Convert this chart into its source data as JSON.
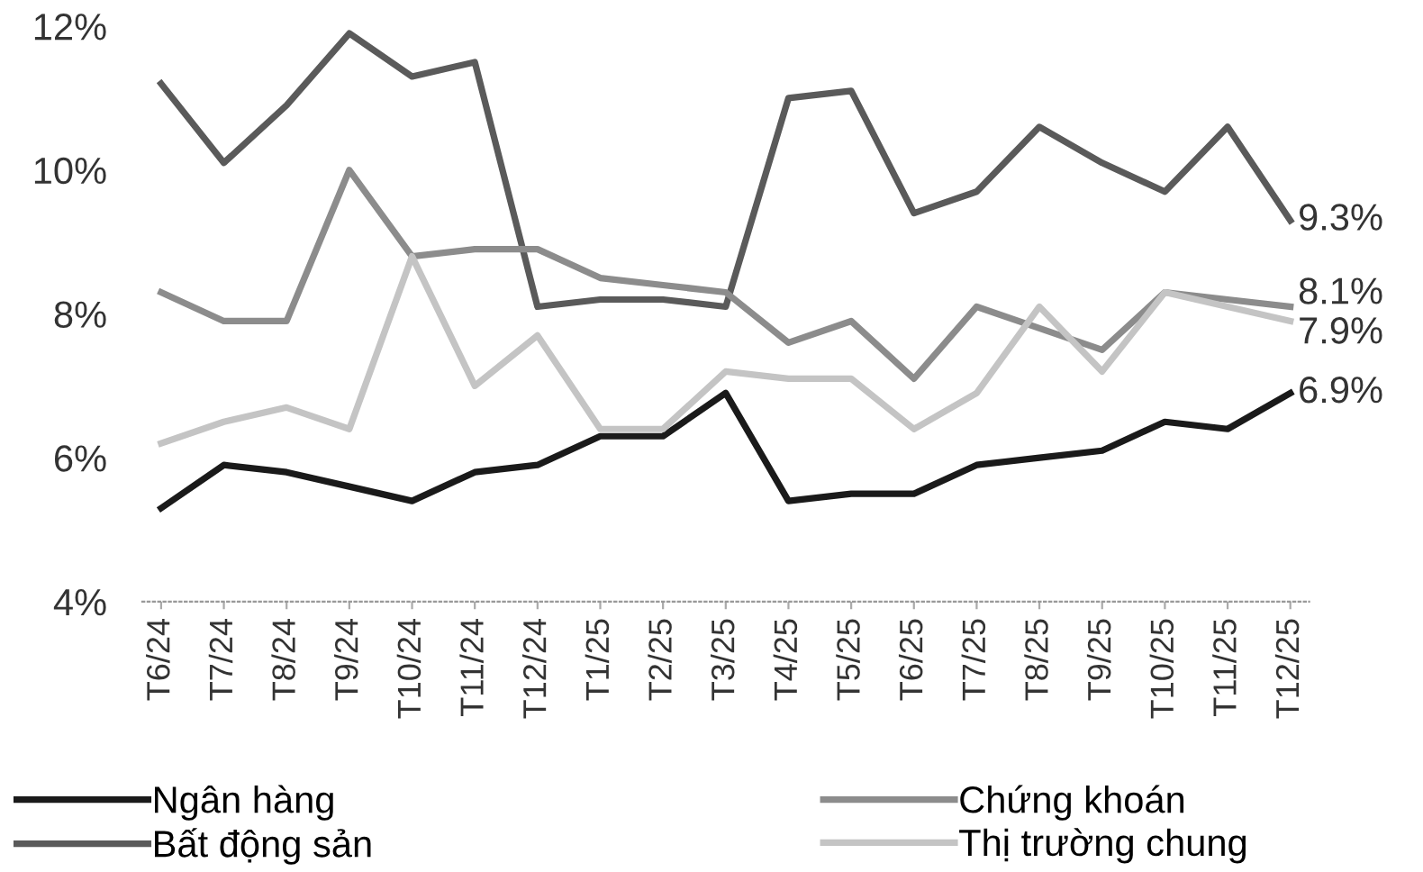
{
  "chart_data": {
    "type": "line",
    "categories": [
      "T6/24",
      "T7/24",
      "T8/24",
      "T9/24",
      "T10/24",
      "T11/24",
      "T12/24",
      "T1/25",
      "T2/25",
      "T3/25",
      "T4/25",
      "T5/25",
      "T6/25",
      "T7/25",
      "T8/25",
      "T9/25",
      "T10/25",
      "T11/25",
      "T12/25"
    ],
    "series": [
      {
        "name": "Ngân hàng",
        "color": "#1a1a1a",
        "values": [
          5.3,
          5.9,
          5.8,
          5.6,
          5.4,
          5.8,
          5.9,
          6.3,
          6.3,
          6.9,
          5.4,
          5.5,
          5.5,
          5.9,
          6.0,
          6.1,
          6.5,
          6.4,
          6.9
        ]
      },
      {
        "name": "Bất động sản",
        "color": "#5a5a5a",
        "values": [
          11.2,
          10.1,
          10.9,
          11.9,
          11.3,
          11.5,
          8.1,
          8.2,
          8.2,
          8.1,
          11.0,
          11.1,
          9.4,
          9.7,
          10.6,
          10.1,
          9.7,
          10.6,
          9.3
        ]
      },
      {
        "name": "Chứng khoán",
        "color": "#8c8c8c",
        "values": [
          8.3,
          7.9,
          7.9,
          10.0,
          8.8,
          8.9,
          8.9,
          8.5,
          8.4,
          8.3,
          7.6,
          7.9,
          7.1,
          8.1,
          7.8,
          7.5,
          8.3,
          8.2,
          8.1
        ]
      },
      {
        "name": "Thị trường chung",
        "color": "#c4c4c4",
        "values": [
          6.2,
          6.5,
          6.7,
          6.4,
          8.8,
          7.0,
          7.7,
          6.4,
          6.4,
          7.2,
          7.1,
          7.1,
          6.4,
          6.9,
          8.1,
          7.2,
          8.3,
          8.1,
          7.9
        ]
      }
    ],
    "ylim": [
      4,
      12
    ],
    "yticks": [
      {
        "value": 4,
        "label": "4%"
      },
      {
        "value": 6,
        "label": "6%"
      },
      {
        "value": 8,
        "label": "8%"
      },
      {
        "value": 10,
        "label": "10%"
      },
      {
        "value": 12,
        "label": "12%"
      }
    ],
    "annotations": [
      {
        "text": "9.3%",
        "x": "T12/25",
        "y": 9.3
      },
      {
        "text": "8.1%",
        "x": "T12/25",
        "y": 8.1
      },
      {
        "text": "7.9%",
        "x": "T12/25",
        "y": 7.9
      },
      {
        "text": "6.9%",
        "x": "T12/25",
        "y": 6.9
      }
    ],
    "grid": false,
    "legend": "bottom",
    "line_style": "solid",
    "marker": "none"
  }
}
